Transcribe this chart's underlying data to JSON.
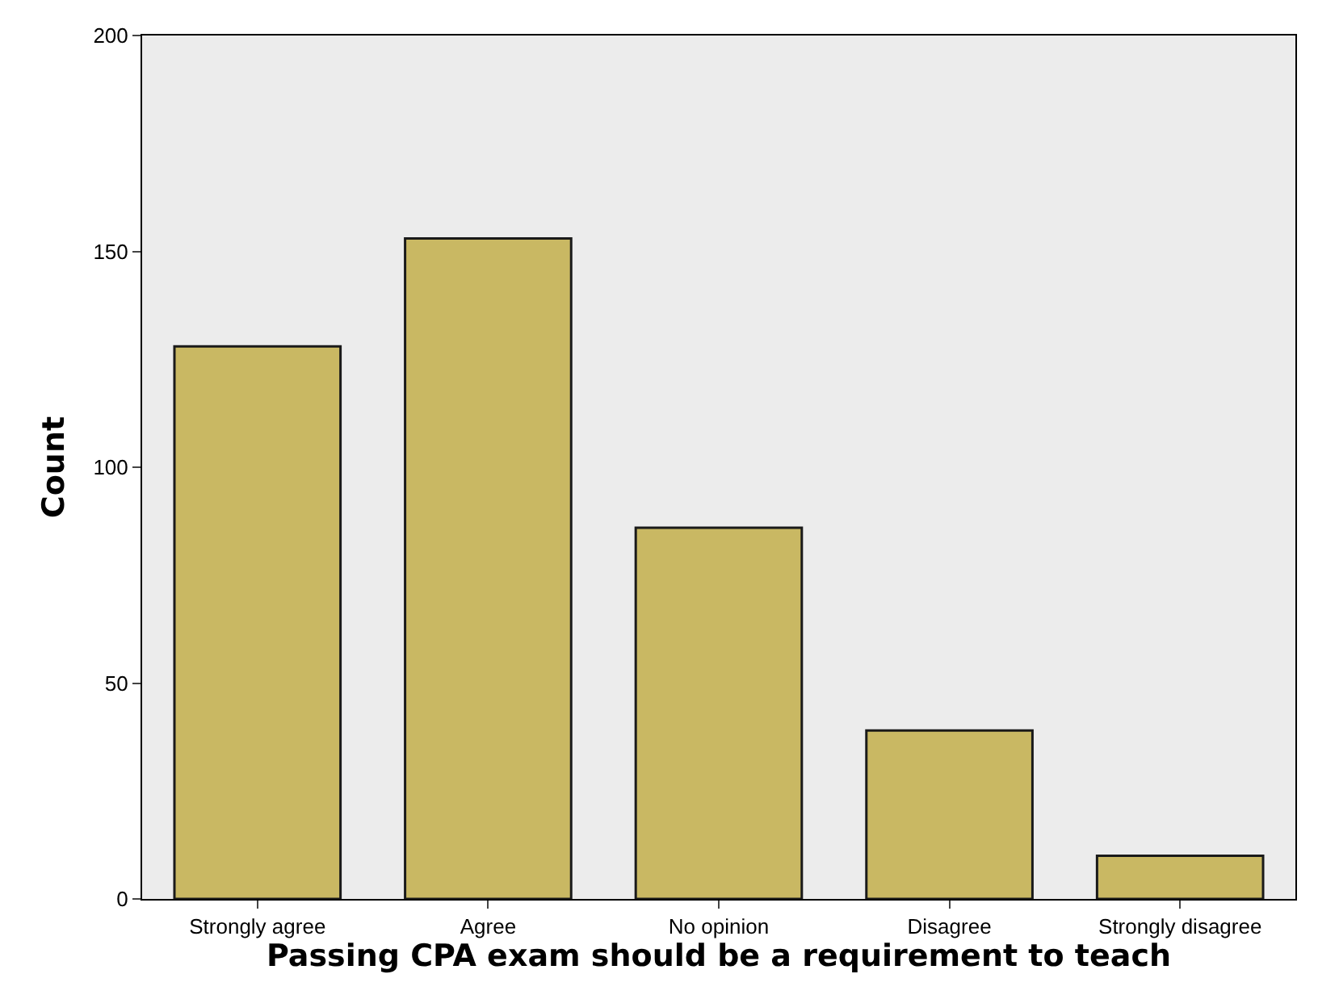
{
  "chart_data": {
    "type": "bar",
    "xlabel": "Passing CPA exam should be a requirement to teach",
    "ylabel": "Count",
    "categories": [
      "Strongly agree",
      "Agree",
      "No opinion",
      "Disagree",
      "Strongly disagree"
    ],
    "values": [
      128,
      153,
      86,
      39,
      10
    ],
    "color": "#c9b863",
    "ylim": [
      0,
      200
    ],
    "yticks": [
      0,
      50,
      100,
      150,
      200
    ],
    "grid": false
  }
}
